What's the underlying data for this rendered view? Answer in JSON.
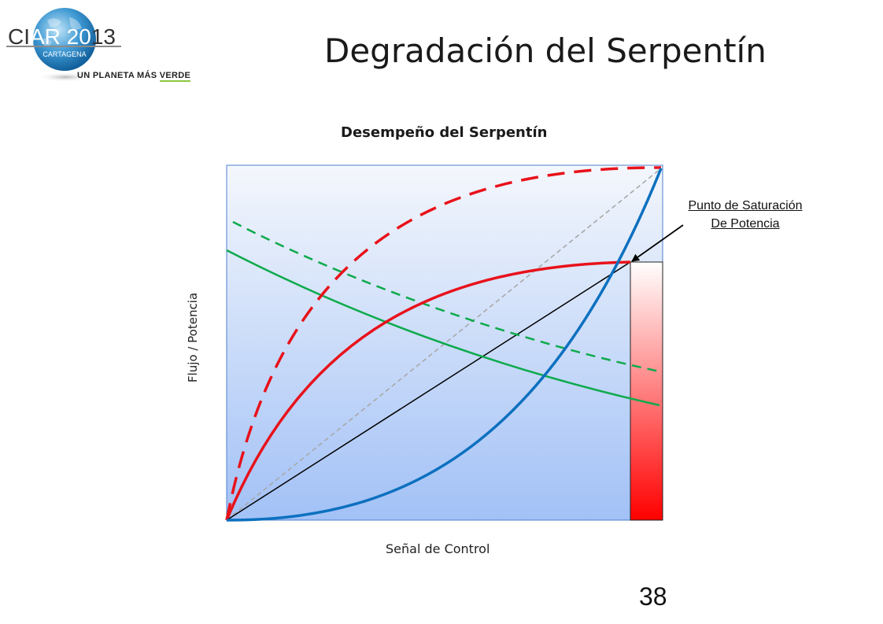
{
  "logo": {
    "name": "CIAR 2013",
    "part1": "CI",
    "part2": "AR 20",
    "part3": "13",
    "city": "CARTAGENA",
    "tagline_prefix": "UN PLANETA MÁS ",
    "tagline_highlight": "VERDE"
  },
  "slide": {
    "title": "Degradación del Serpentín",
    "page_number": "38"
  },
  "chart": {
    "title": "Desempeño del Serpentín",
    "xlabel": "Señal de Control",
    "ylabel": "Flujo / Potencia",
    "annotation_line1": "Punto de Saturación",
    "annotation_line2": "De Potencia"
  },
  "colors": {
    "plot_bg_top": "#f4f7fc",
    "plot_bg_bottom": "#a2c1f6",
    "red": "#e8121b",
    "green": "#0eaa4c",
    "blue": "#0c70bf",
    "gray_dashed": "#a8a8a8",
    "saturation_bar_top": "#ffffff",
    "saturation_bar_bottom": "#ff0000",
    "logo_globe": "#2a86c4"
  }
}
